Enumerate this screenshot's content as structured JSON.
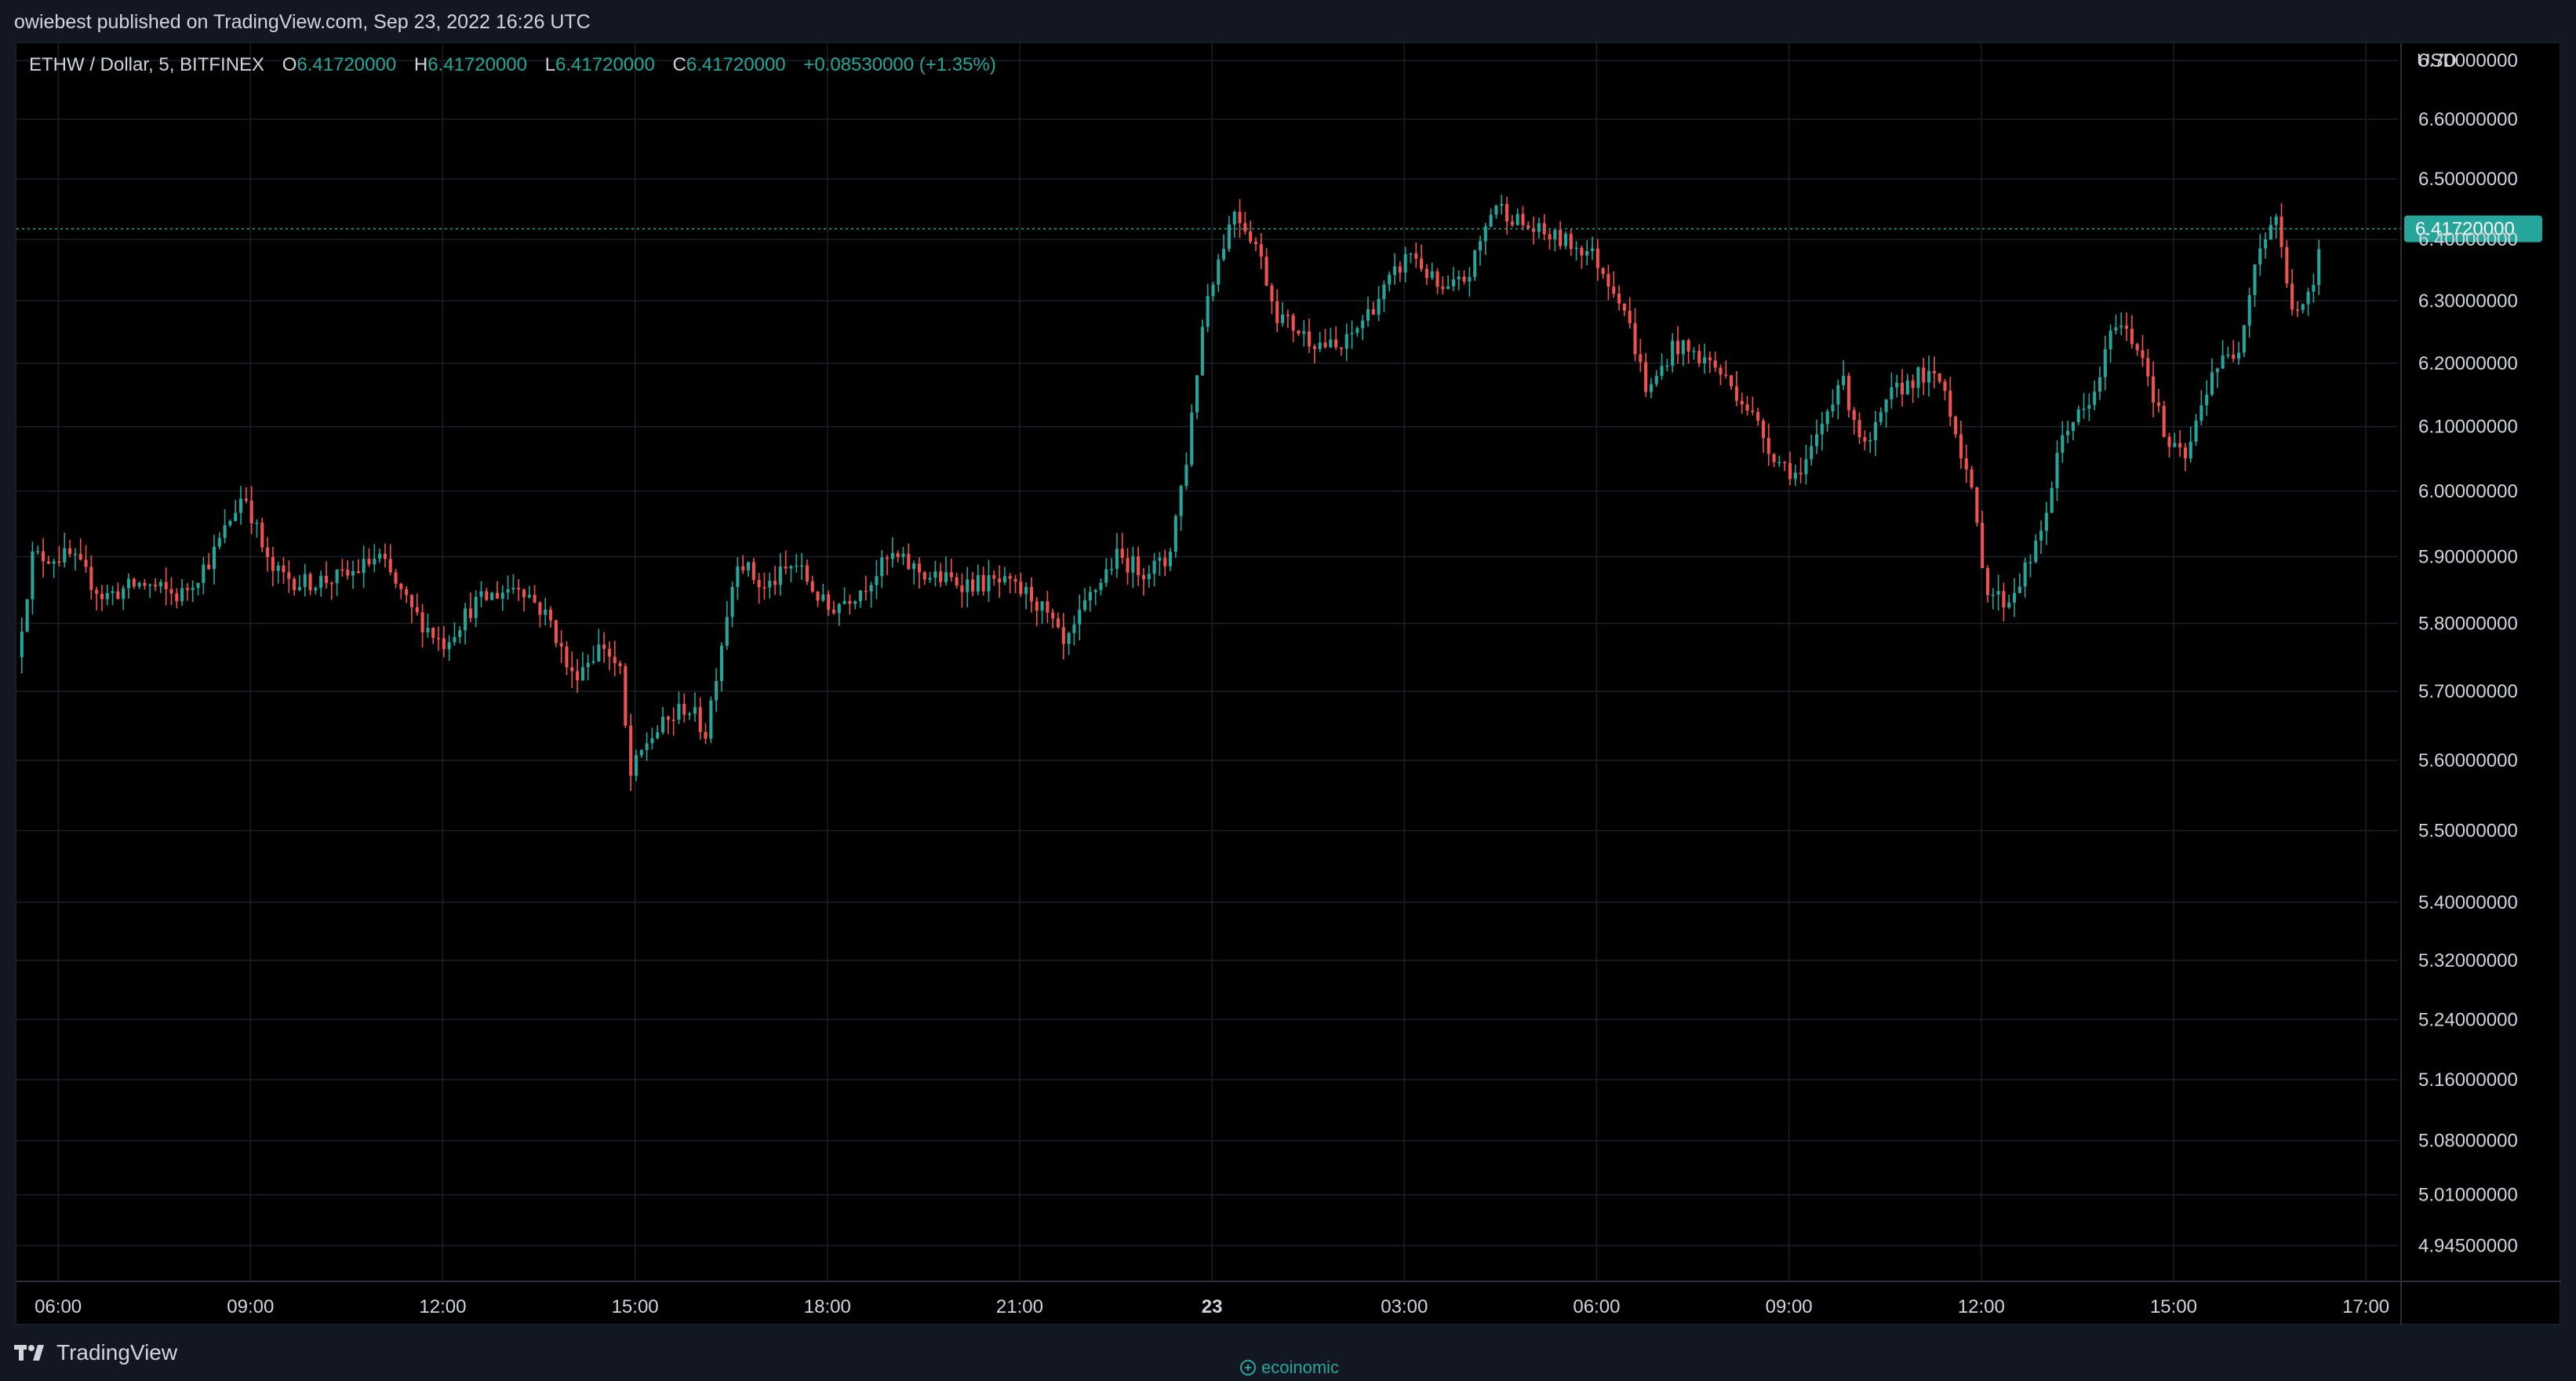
{
  "header": {
    "publish_line": "owiebest published on TradingView.com, Sep 23, 2022 16:26 UTC"
  },
  "legend": {
    "symbol": "ETHW / Dollar, 5, BITFINEX",
    "o_label": "O",
    "o_value": "6.41720000",
    "h_label": "H",
    "h_value": "6.41720000",
    "l_label": "L",
    "l_value": "6.41720000",
    "c_label": "C",
    "c_value": "6.41720000",
    "change": "+0.08530000 (+1.35%)"
  },
  "footer": {
    "brand": "TradingView",
    "watermark": "ecoinomic"
  },
  "colors": {
    "up": "#26a69a",
    "down": "#ef5350",
    "grid": "#1c1f26",
    "axis_text": "#d1d4dc"
  },
  "chart_data": {
    "type": "candlestick",
    "title": "ETHW / Dollar, 5, BITFINEX",
    "currency_label": "USD",
    "y_scale": "log",
    "ylim": [
      4.9,
      6.73
    ],
    "y_ticks": [
      "6.70000000",
      "6.60000000",
      "6.50000000",
      "6.40000000",
      "6.30000000",
      "6.20000000",
      "6.10000000",
      "6.00000000",
      "5.90000000",
      "5.80000000",
      "5.70000000",
      "5.60000000",
      "5.50000000",
      "5.40000000",
      "5.32000000",
      "5.24000000",
      "5.16000000",
      "5.08000000",
      "5.01000000",
      "4.94500000"
    ],
    "x_ticks": [
      {
        "t": 6,
        "label": "06:00"
      },
      {
        "t": 9,
        "label": "09:00"
      },
      {
        "t": 12,
        "label": "12:00"
      },
      {
        "t": 15,
        "label": "15:00"
      },
      {
        "t": 18,
        "label": "18:00"
      },
      {
        "t": 21,
        "label": "21:00"
      },
      {
        "t": 24,
        "label": "23"
      },
      {
        "t": 27,
        "label": "03:00"
      },
      {
        "t": 30,
        "label": "06:00"
      },
      {
        "t": 33,
        "label": "09:00"
      },
      {
        "t": 36,
        "label": "12:00"
      },
      {
        "t": 39,
        "label": "15:00"
      },
      {
        "t": 42,
        "label": "17:00"
      }
    ],
    "last_price": "6.41720000",
    "last_price_value": 6.4172,
    "anchors": [
      {
        "t": 5.35,
        "p": 5.75
      },
      {
        "t": 5.6,
        "p": 5.9
      },
      {
        "t": 6.2,
        "p": 5.9
      },
      {
        "t": 6.7,
        "p": 5.84
      },
      {
        "t": 7.3,
        "p": 5.86
      },
      {
        "t": 7.9,
        "p": 5.84
      },
      {
        "t": 8.4,
        "p": 5.9
      },
      {
        "t": 8.9,
        "p": 6.0
      },
      {
        "t": 9.3,
        "p": 5.88
      },
      {
        "t": 9.8,
        "p": 5.86
      },
      {
        "t": 10.5,
        "p": 5.87
      },
      {
        "t": 11.0,
        "p": 5.9
      },
      {
        "t": 11.5,
        "p": 5.82
      },
      {
        "t": 12.0,
        "p": 5.77
      },
      {
        "t": 12.5,
        "p": 5.83
      },
      {
        "t": 13.2,
        "p": 5.86
      },
      {
        "t": 13.7,
        "p": 5.8
      },
      {
        "t": 14.0,
        "p": 5.72
      },
      {
        "t": 14.5,
        "p": 5.77
      },
      {
        "t": 14.8,
        "p": 5.72
      },
      {
        "t": 14.9,
        "p": 5.57
      },
      {
        "t": 15.2,
        "p": 5.63
      },
      {
        "t": 15.8,
        "p": 5.68
      },
      {
        "t": 16.1,
        "p": 5.64
      },
      {
        "t": 16.4,
        "p": 5.8
      },
      {
        "t": 16.6,
        "p": 5.9
      },
      {
        "t": 17.0,
        "p": 5.85
      },
      {
        "t": 17.5,
        "p": 5.89
      },
      {
        "t": 18.0,
        "p": 5.82
      },
      {
        "t": 18.5,
        "p": 5.85
      },
      {
        "t": 19.0,
        "p": 5.9
      },
      {
        "t": 19.6,
        "p": 5.87
      },
      {
        "t": 20.2,
        "p": 5.86
      },
      {
        "t": 20.7,
        "p": 5.86
      },
      {
        "t": 21.2,
        "p": 5.84
      },
      {
        "t": 21.5,
        "p": 5.8
      },
      {
        "t": 21.7,
        "p": 5.76
      },
      {
        "t": 22.1,
        "p": 5.84
      },
      {
        "t": 22.5,
        "p": 5.9
      },
      {
        "t": 22.9,
        "p": 5.88
      },
      {
        "t": 23.3,
        "p": 5.89
      },
      {
        "t": 23.6,
        "p": 6.05
      },
      {
        "t": 23.9,
        "p": 6.3
      },
      {
        "t": 24.35,
        "p": 6.45
      },
      {
        "t": 24.7,
        "p": 6.39
      },
      {
        "t": 25.0,
        "p": 6.28
      },
      {
        "t": 25.5,
        "p": 6.24
      },
      {
        "t": 26.0,
        "p": 6.22
      },
      {
        "t": 26.5,
        "p": 6.29
      },
      {
        "t": 27.1,
        "p": 6.38
      },
      {
        "t": 27.6,
        "p": 6.31
      },
      {
        "t": 28.0,
        "p": 6.34
      },
      {
        "t": 28.4,
        "p": 6.46
      },
      {
        "t": 28.9,
        "p": 6.42
      },
      {
        "t": 29.4,
        "p": 6.4
      },
      {
        "t": 29.9,
        "p": 6.38
      },
      {
        "t": 30.4,
        "p": 6.3
      },
      {
        "t": 30.8,
        "p": 6.15
      },
      {
        "t": 31.2,
        "p": 6.23
      },
      {
        "t": 31.8,
        "p": 6.2
      },
      {
        "t": 32.3,
        "p": 6.14
      },
      {
        "t": 32.8,
        "p": 6.05
      },
      {
        "t": 33.2,
        "p": 6.02
      },
      {
        "t": 33.5,
        "p": 6.1
      },
      {
        "t": 33.8,
        "p": 6.18
      },
      {
        "t": 34.2,
        "p": 6.06
      },
      {
        "t": 34.6,
        "p": 6.15
      },
      {
        "t": 35.0,
        "p": 6.18
      },
      {
        "t": 35.4,
        "p": 6.17
      },
      {
        "t": 35.8,
        "p": 6.02
      },
      {
        "t": 36.1,
        "p": 5.85
      },
      {
        "t": 36.4,
        "p": 5.83
      },
      {
        "t": 36.9,
        "p": 5.92
      },
      {
        "t": 37.3,
        "p": 6.1
      },
      {
        "t": 37.7,
        "p": 6.13
      },
      {
        "t": 38.1,
        "p": 6.27
      },
      {
        "t": 38.5,
        "p": 6.22
      },
      {
        "t": 38.9,
        "p": 6.07
      },
      {
        "t": 39.2,
        "p": 6.05
      },
      {
        "t": 39.6,
        "p": 6.19
      },
      {
        "t": 40.0,
        "p": 6.22
      },
      {
        "t": 40.3,
        "p": 6.38
      },
      {
        "t": 40.6,
        "p": 6.44
      },
      {
        "t": 40.8,
        "p": 6.3
      },
      {
        "t": 41.0,
        "p": 6.28
      },
      {
        "t": 41.2,
        "p": 6.33
      },
      {
        "t": 41.33,
        "p": 6.4172
      }
    ]
  }
}
